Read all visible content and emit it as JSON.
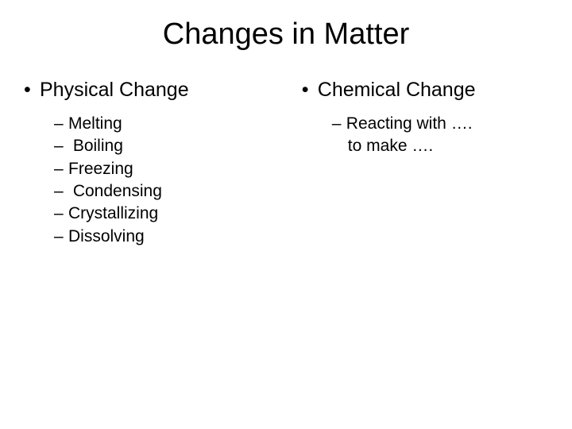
{
  "title": "Changes in Matter",
  "left": {
    "heading": "Physical Change",
    "items": [
      "Melting",
      " Boiling",
      "Freezing",
      "  Condensing",
      "Crystallizing",
      "Dissolving"
    ]
  },
  "right": {
    "heading": "Chemical Change",
    "item1": "Reacting with ….",
    "item1_cont": "to make …."
  },
  "colors": {
    "background": "#ffffff",
    "text": "#000000"
  },
  "fonts": {
    "family": "Arial",
    "title_size": 38,
    "level1_size": 25,
    "level2_size": 21
  }
}
